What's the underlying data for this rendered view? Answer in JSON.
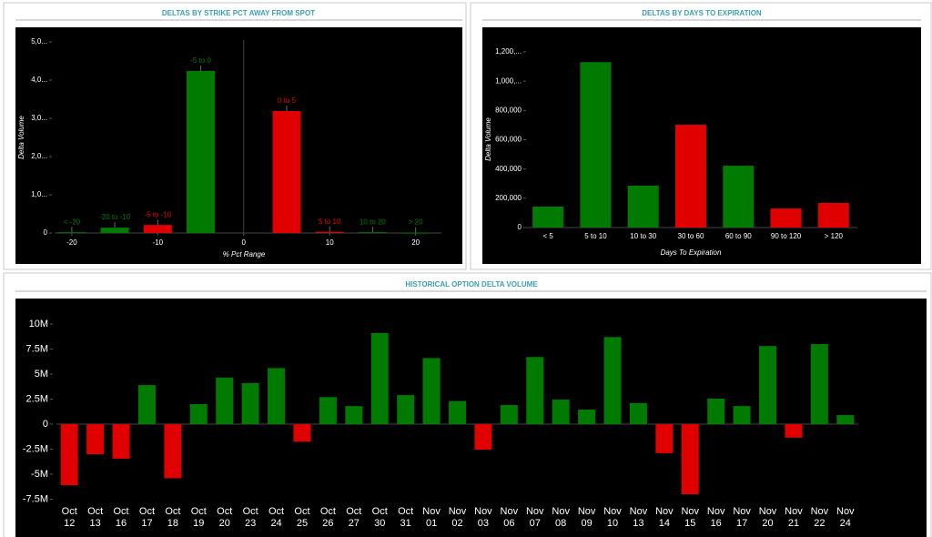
{
  "chart_data": [
    {
      "type": "bar",
      "title": "DELTAS BY STRIKE PCT AWAY FROM SPOT",
      "x_label": "% Pct Range",
      "y_label": "Delta Volume",
      "categories": [
        "< -20",
        "-20 to -10",
        "-5 to -10",
        "-5 to 0",
        "0 to 5",
        "5 to 10",
        "10 to 20",
        "> 20"
      ],
      "x": [
        -20,
        -15,
        -10,
        -5,
        5,
        10,
        15,
        20
      ],
      "values": [
        20000,
        140000,
        210000,
        4240000,
        3190000,
        30000,
        20000,
        10000
      ],
      "colors": [
        "#007a00",
        "#007a00",
        "#e00000",
        "#007a00",
        "#e00000",
        "#e00000",
        "#007a00",
        "#007a00"
      ],
      "xlim": [
        -22,
        23
      ],
      "xticks": [
        -20,
        -10,
        0,
        10,
        20
      ],
      "ylim": [
        0,
        5000000
      ],
      "yticks": [
        0,
        {
          "value": 1000000,
          "label": "1,0..."
        },
        {
          "value": 2000000,
          "label": "2,0..."
        },
        {
          "value": 3000000,
          "label": "3,0..."
        },
        {
          "value": 4000000,
          "label": "4,0..."
        },
        {
          "value": 5000000,
          "label": "5,0..."
        }
      ]
    },
    {
      "type": "bar",
      "title": "DELTAS BY DAYS TO EXPIRATION",
      "x_label": "Days To Expiration",
      "y_label": "Delta Volume",
      "categories": [
        "< 5",
        "5 to 10",
        "10 to 30",
        "30 to 60",
        "60 to 90",
        "90 to 120",
        "> 120"
      ],
      "values": [
        143000,
        1130000,
        286000,
        702000,
        422000,
        130000,
        168000
      ],
      "colors": [
        "#007a00",
        "#007a00",
        "#007a00",
        "#e00000",
        "#007a00",
        "#e00000",
        "#e00000"
      ],
      "ylim": [
        0,
        1200000
      ],
      "yticks": [
        0,
        {
          "value": 200000,
          "label": "200,000"
        },
        {
          "value": 400000,
          "label": "400,000"
        },
        {
          "value": 600000,
          "label": "600,000"
        },
        {
          "value": 800000,
          "label": "800,000"
        },
        {
          "value": 1000000,
          "label": "1,000,..."
        },
        {
          "value": 1200000,
          "label": "1,200,..."
        }
      ]
    },
    {
      "type": "bar",
      "title": "HISTORICAL OPTION DELTA VOLUME",
      "categories": [
        "Oct 12",
        "Oct 13",
        "Oct 16",
        "Oct 17",
        "Oct 18",
        "Oct 19",
        "Oct 20",
        "Oct 23",
        "Oct 24",
        "Oct 25",
        "Oct 26",
        "Oct 27",
        "Oct 30",
        "Oct 31",
        "Nov 01",
        "Nov 02",
        "Nov 03",
        "Nov 06",
        "Nov 07",
        "Nov 08",
        "Nov 09",
        "Nov 10",
        "Nov 13",
        "Nov 14",
        "Nov 15",
        "Nov 16",
        "Nov 17",
        "Nov 20",
        "Nov 21",
        "Nov 22",
        "Nov 24"
      ],
      "values": [
        -6100000,
        -3000000,
        -3450000,
        3900000,
        -5400000,
        2000000,
        4650000,
        4100000,
        5600000,
        -1750000,
        2700000,
        1800000,
        9100000,
        2900000,
        6600000,
        2300000,
        -2550000,
        1900000,
        6700000,
        2450000,
        1450000,
        8700000,
        2100000,
        -2900000,
        -7000000,
        2550000,
        1800000,
        7800000,
        -1350000,
        8000000,
        900000
      ],
      "positive_color": "#007a00",
      "negative_color": "#e00000",
      "ylim": [
        -8000000,
        11000000
      ],
      "yticks": [
        {
          "value": 10000000,
          "label": "10M"
        },
        {
          "value": 7500000,
          "label": "7.5M"
        },
        {
          "value": 5000000,
          "label": "5M"
        },
        {
          "value": 2500000,
          "label": "2.5M"
        },
        0,
        {
          "value": -2500000,
          "label": "-2.5M"
        },
        {
          "value": -5000000,
          "label": "-5M"
        },
        {
          "value": -7500000,
          "label": "-7.5M"
        }
      ]
    }
  ]
}
